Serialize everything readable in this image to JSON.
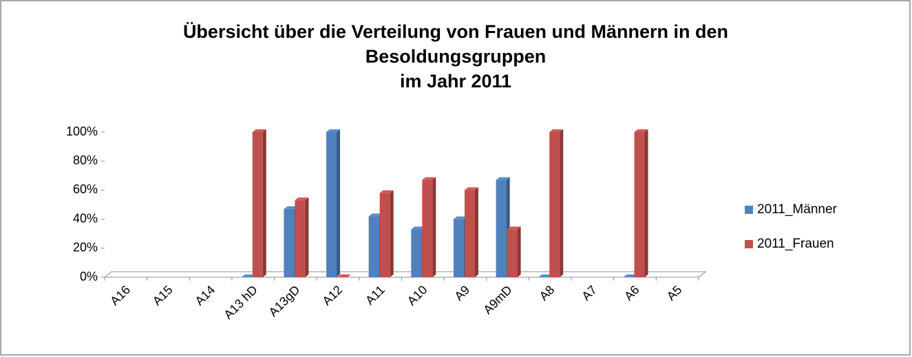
{
  "chart_data": {
    "type": "bar3d",
    "title": [
      "Übersicht über die Verteilung von Frauen und Männern in den",
      "Besoldungsgruppen",
      "im Jahr 2011"
    ],
    "categories": [
      "A16",
      "A15",
      "A14",
      "A13 hD",
      "A13gD",
      "A12",
      "A11",
      "A10",
      "A9",
      "A9mD",
      "A8",
      "A7",
      "A6",
      "A5"
    ],
    "series": [
      {
        "name": "2011_Männer",
        "color": "#4f81bd",
        "values": [
          null,
          null,
          null,
          0,
          47,
          100,
          42,
          33,
          40,
          67,
          0,
          null,
          0,
          null
        ]
      },
      {
        "name": "2011_Frauen",
        "color": "#c0504d",
        "values": [
          null,
          null,
          null,
          100,
          53,
          0,
          58,
          67,
          60,
          33,
          100,
          null,
          100,
          null
        ]
      }
    ],
    "ylim": [
      0,
      100
    ],
    "yticks": [
      {
        "value": 0,
        "label": "0%"
      },
      {
        "value": 20,
        "label": "20%"
      },
      {
        "value": 40,
        "label": "40%"
      },
      {
        "value": 60,
        "label": "60%"
      },
      {
        "value": 80,
        "label": "80%"
      },
      {
        "value": 100,
        "label": "100%"
      }
    ],
    "legend": "right"
  }
}
